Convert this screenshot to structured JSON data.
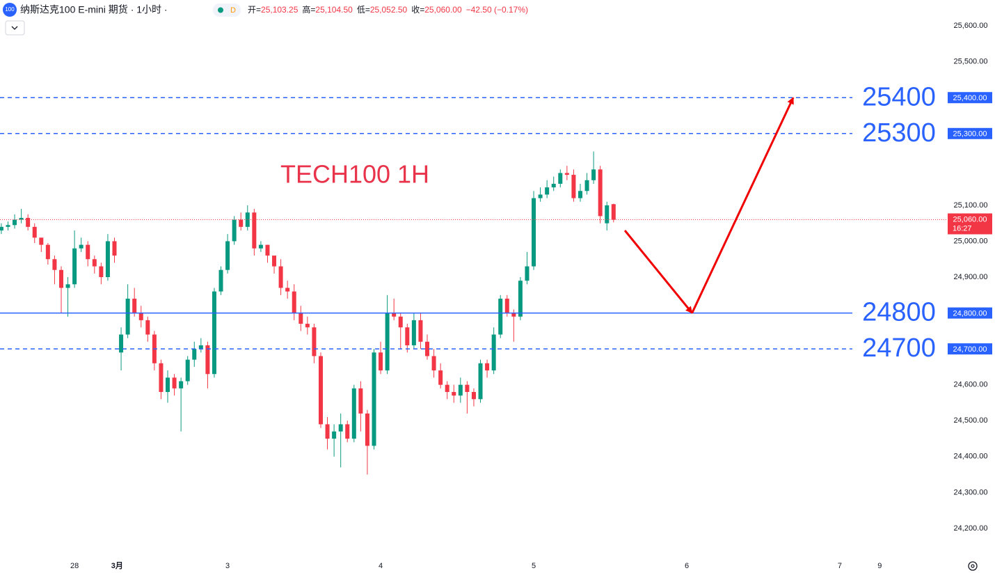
{
  "header": {
    "symbol_icon": "100",
    "title": "纳斯达克100 E-mini 期货 · 1小时 ·",
    "badge": "D",
    "ohlc": [
      {
        "label": "开=",
        "value": "25,103.25"
      },
      {
        "label": "高=",
        "value": "25,104.50"
      },
      {
        "label": "低=",
        "value": "25,052.50"
      },
      {
        "label": "收=",
        "value": "25,060.00"
      }
    ],
    "change": "−42.50 (−0.17%)"
  },
  "chart_data": {
    "type": "candlestick",
    "annotation": "TECH100 1H",
    "up_color": "#089981",
    "down_color": "#f23645",
    "open": [
      25030,
      25040,
      25045,
      25060,
      25065,
      25040,
      25010,
      24990,
      24950,
      24920,
      24870,
      24880,
      24980,
      24990,
      24950,
      24930,
      24900,
      25000,
      24690,
      24740,
      24840,
      24800,
      24780,
      24740,
      24660,
      24580,
      24620,
      24590,
      24610,
      24670,
      24700,
      24710,
      24630,
      24860,
      24920,
      25000,
      25060,
      25040,
      25080,
      24980,
      24990,
      24960,
      24930,
      24870,
      24860,
      24800,
      24770,
      24760,
      24680,
      24490,
      24450,
      24470,
      24490,
      24450,
      24590,
      24520,
      24430,
      24690,
      24640,
      24800,
      24790,
      24760,
      24710,
      24780,
      24720,
      24680,
      24640,
      24600,
      24580,
      24570,
      24600,
      24580,
      24560,
      24660,
      24640,
      24740,
      24840,
      24800,
      24790,
      24890,
      24930,
      25120,
      25130,
      25150,
      25160,
      25190,
      25185,
      25120,
      25140,
      25170,
      25200,
      25050,
      25103.25
    ],
    "high": [
      25050,
      25055,
      25075,
      25090,
      25075,
      25050,
      25000,
      24995,
      24960,
      24930,
      24900,
      25030,
      25010,
      25000,
      24960,
      24940,
      25020,
      25010,
      24760,
      24880,
      24870,
      24820,
      24790,
      24750,
      24670,
      24640,
      24630,
      24620,
      24680,
      24720,
      24730,
      24720,
      24870,
      24930,
      25020,
      25070,
      25080,
      25100,
      25090,
      25000,
      24990,
      24950,
      24950,
      24890,
      24880,
      24820,
      24790,
      24770,
      24690,
      24510,
      24490,
      24520,
      24500,
      24600,
      24610,
      24530,
      24700,
      24720,
      24850,
      24840,
      24800,
      24770,
      24800,
      24800,
      24740,
      24700,
      24660,
      24610,
      24600,
      24620,
      24610,
      24590,
      24670,
      24670,
      24760,
      24850,
      24850,
      24810,
      24900,
      24970,
      25140,
      25150,
      25170,
      25180,
      25200,
      25210,
      25200,
      25160,
      25190,
      25250,
      25210,
      25110,
      25104.5
    ],
    "low": [
      25020,
      25030,
      25035,
      25050,
      25030,
      24995,
      24970,
      24935,
      24880,
      24800,
      24790,
      24870,
      24970,
      24930,
      24910,
      24880,
      24890,
      24940,
      24640,
      24730,
      24790,
      24760,
      24720,
      24640,
      24560,
      24550,
      24570,
      24470,
      24600,
      24650,
      24690,
      24590,
      24620,
      24850,
      24910,
      24990,
      25030,
      25030,
      24960,
      24970,
      24940,
      24910,
      24850,
      24840,
      24780,
      24750,
      24740,
      24660,
      24480,
      24420,
      24400,
      24370,
      24440,
      24440,
      24470,
      24350,
      24420,
      24630,
      24630,
      24780,
      24700,
      24690,
      24700,
      24700,
      24670,
      24620,
      24590,
      24560,
      24550,
      24550,
      24520,
      24540,
      24550,
      24620,
      24630,
      24730,
      24790,
      24720,
      24780,
      24880,
      24920,
      25110,
      25120,
      25140,
      25150,
      25170,
      25110,
      25110,
      25130,
      25160,
      25050,
      25030,
      25052.5
    ],
    "close": [
      25040,
      25045,
      25060,
      25065,
      25040,
      25010,
      24990,
      24950,
      24920,
      24870,
      24880,
      24980,
      24990,
      24950,
      24930,
      24900,
      25000,
      24960,
      24740,
      24840,
      24800,
      24780,
      24740,
      24660,
      24580,
      24620,
      24590,
      24610,
      24670,
      24700,
      24710,
      24630,
      24860,
      24920,
      25000,
      25060,
      25040,
      25080,
      24980,
      24990,
      24960,
      24930,
      24870,
      24860,
      24800,
      24770,
      24760,
      24680,
      24490,
      24450,
      24470,
      24490,
      24450,
      24590,
      24520,
      24430,
      24690,
      24640,
      24800,
      24790,
      24760,
      24710,
      24780,
      24720,
      24680,
      24640,
      24600,
      24580,
      24570,
      24600,
      24580,
      24560,
      24660,
      24640,
      24740,
      24840,
      24800,
      24790,
      24890,
      24930,
      25120,
      25130,
      25150,
      25160,
      25190,
      25185,
      25120,
      25140,
      25170,
      25200,
      25070,
      25100,
      25060
    ],
    "xlim": [
      -0.2,
      142
    ],
    "ylim": [
      24130,
      25672
    ],
    "xticks": [
      {
        "value": 11,
        "label": "28"
      },
      {
        "value": 17.4,
        "label": "3月"
      },
      {
        "value": 34,
        "label": "3"
      },
      {
        "value": 57,
        "label": "4"
      },
      {
        "value": 80,
        "label": "5"
      },
      {
        "value": 103,
        "label": "6"
      },
      {
        "value": 126,
        "label": "7"
      },
      {
        "value": 132,
        "label": "9"
      }
    ],
    "yticks": [
      {
        "value": 25600,
        "label": "25,600.00"
      },
      {
        "value": 25500,
        "label": "25,500.00"
      },
      {
        "value": 25100,
        "label": "25,100.00"
      },
      {
        "value": 25000,
        "label": "25,000.00"
      },
      {
        "value": 24900,
        "label": "24,900.00"
      },
      {
        "value": 24600,
        "label": "24,600.00"
      },
      {
        "value": 24500,
        "label": "24,500.00"
      },
      {
        "value": 24400,
        "label": "24,400.00"
      },
      {
        "value": 24300,
        "label": "24,300.00"
      },
      {
        "value": 24200,
        "label": "24,200.00"
      }
    ],
    "levels": [
      {
        "value": 25400,
        "label": "25400",
        "axis_label": "25,400.00",
        "style": "dashed"
      },
      {
        "value": 25300,
        "label": "25300",
        "axis_label": "25,300.00",
        "style": "dashed"
      },
      {
        "value": 24800,
        "label": "24800",
        "axis_label": "24,800.00",
        "style": "solid"
      },
      {
        "value": 24700,
        "label": "24700",
        "axis_label": "24,700.00",
        "style": "dashed"
      }
    ],
    "level_color": "#2962ff",
    "current_price": {
      "value": 25060,
      "label": "25,060.00",
      "countdown": "16:27"
    },
    "arrow": {
      "color": "#f00000",
      "points": [
        [
          93.7,
          25030
        ],
        [
          103.8,
          24800
        ],
        [
          119,
          25400
        ]
      ]
    }
  }
}
